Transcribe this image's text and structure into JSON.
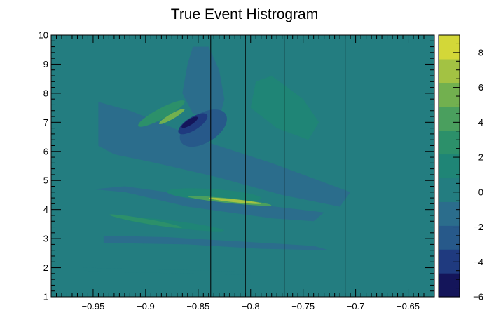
{
  "chart_data": {
    "type": "heatmap",
    "title": "True Event Histrogram",
    "xlabel": "",
    "ylabel": "",
    "xlim": [
      -0.99,
      -0.625
    ],
    "ylim": [
      1,
      10
    ],
    "x_ticks": [
      -0.95,
      -0.9,
      -0.85,
      -0.8,
      -0.75,
      -0.7,
      -0.65
    ],
    "x_tick_labels": [
      "−0.95",
      "−0.9",
      "−0.85",
      "−0.8",
      "−0.75",
      "−0.7",
      "−0.65"
    ],
    "y_ticks": [
      1,
      2,
      3,
      4,
      5,
      6,
      7,
      8,
      9,
      10
    ],
    "y_tick_labels": [
      "1",
      "2",
      "3",
      "4",
      "5",
      "6",
      "7",
      "8",
      "9",
      "10"
    ],
    "colorbar": {
      "zlim": [
        -6,
        9
      ],
      "ticks": [
        -6,
        -4,
        -2,
        0,
        2,
        4,
        6,
        8
      ],
      "tick_labels": [
        "−6",
        "−4",
        "−2",
        "0",
        "2",
        "4",
        "6",
        "8"
      ],
      "palette": [
        "#14155a",
        "#1f3a7f",
        "#27598a",
        "#2b6d8c",
        "#237d80",
        "#1f8576",
        "#2c906a",
        "#4a9f5e",
        "#72b04f",
        "#a3c243",
        "#d3d738"
      ]
    },
    "background_value": 0,
    "vertical_lines_x": [
      -0.838,
      -0.805,
      -0.768,
      -0.71
    ],
    "features": [
      {
        "shape": "polygon",
        "value": -1.3,
        "points": [
          [
            -0.945,
            7.7
          ],
          [
            -0.915,
            7.4
          ],
          [
            -0.88,
            6.9
          ],
          [
            -0.84,
            6.3
          ],
          [
            -0.78,
            5.6
          ],
          [
            -0.72,
            4.8
          ],
          [
            -0.705,
            4.6
          ],
          [
            -0.715,
            4.1
          ],
          [
            -0.77,
            4.5
          ],
          [
            -0.83,
            5.1
          ],
          [
            -0.89,
            5.6
          ],
          [
            -0.93,
            5.9
          ],
          [
            -0.945,
            6.2
          ]
        ]
      },
      {
        "shape": "polygon",
        "value": -1.3,
        "points": [
          [
            -0.86,
            9.0
          ],
          [
            -0.855,
            9.6
          ],
          [
            -0.84,
            9.6
          ],
          [
            -0.83,
            8.8
          ],
          [
            -0.825,
            7.8
          ],
          [
            -0.83,
            7.1
          ],
          [
            -0.855,
            7.3
          ],
          [
            -0.865,
            8.0
          ]
        ]
      },
      {
        "shape": "polygon",
        "value": 1.2,
        "points": [
          [
            -0.8,
            7.5
          ],
          [
            -0.795,
            8.4
          ],
          [
            -0.78,
            8.6
          ],
          [
            -0.75,
            7.8
          ],
          [
            -0.735,
            7.0
          ],
          [
            -0.745,
            6.4
          ],
          [
            -0.775,
            6.8
          ]
        ]
      },
      {
        "shape": "polygon",
        "value": -0.8,
        "points": [
          [
            -0.95,
            4.7
          ],
          [
            -0.92,
            4.6
          ],
          [
            -0.86,
            4.1
          ],
          [
            -0.78,
            3.7
          ],
          [
            -0.74,
            3.6
          ],
          [
            -0.73,
            3.9
          ],
          [
            -0.8,
            4.2
          ],
          [
            -0.88,
            4.6
          ],
          [
            -0.92,
            4.8
          ]
        ]
      },
      {
        "shape": "polygon",
        "value": -0.7,
        "points": [
          [
            -0.94,
            3.1
          ],
          [
            -0.88,
            3.05
          ],
          [
            -0.81,
            2.9
          ],
          [
            -0.74,
            2.75
          ],
          [
            -0.725,
            2.6
          ],
          [
            -0.79,
            2.65
          ],
          [
            -0.86,
            2.8
          ],
          [
            -0.94,
            2.85
          ]
        ]
      },
      {
        "shape": "polygon",
        "value": -0.5,
        "points": [
          [
            -0.96,
            2.0
          ],
          [
            -0.9,
            1.95
          ],
          [
            -0.84,
            1.9
          ],
          [
            -0.8,
            1.85
          ],
          [
            -0.8,
            1.75
          ],
          [
            -0.86,
            1.8
          ],
          [
            -0.93,
            1.85
          ],
          [
            -0.96,
            1.9
          ]
        ]
      },
      {
        "shape": "ellipse",
        "value": 1.8,
        "cx": -0.875,
        "cy": 3.5,
        "rx": 0.05,
        "ry": 0.12,
        "rot": 7
      },
      {
        "shape": "ellipse",
        "value": 3.2,
        "cx": -0.9,
        "cy": 3.6,
        "rx": 0.035,
        "ry": 0.08,
        "rot": 10
      },
      {
        "shape": "ellipse",
        "value": 2.0,
        "cx": -0.835,
        "cy": 4.5,
        "rx": 0.045,
        "ry": 0.2,
        "rot": 4
      },
      {
        "shape": "ellipse",
        "value": 4.5,
        "cx": -0.82,
        "cy": 4.3,
        "rx": 0.04,
        "ry": 0.08,
        "rot": 6
      },
      {
        "shape": "ellipse",
        "value": 7.5,
        "cx": -0.815,
        "cy": 4.3,
        "rx": 0.025,
        "ry": 0.05,
        "rot": 6
      },
      {
        "shape": "ellipse",
        "value": 2.2,
        "cx": -0.885,
        "cy": 7.3,
        "rx": 0.025,
        "ry": 0.18,
        "rot": -28
      },
      {
        "shape": "ellipse",
        "value": 5.5,
        "cx": -0.875,
        "cy": 7.2,
        "rx": 0.014,
        "ry": 0.09,
        "rot": -30
      },
      {
        "shape": "ellipse",
        "value": -2.5,
        "cx": -0.845,
        "cy": 6.8,
        "rx": 0.025,
        "ry": 0.5,
        "rot": -32
      },
      {
        "shape": "ellipse",
        "value": -4.5,
        "cx": -0.855,
        "cy": 6.95,
        "rx": 0.016,
        "ry": 0.22,
        "rot": -32
      },
      {
        "shape": "ellipse",
        "value": -5.8,
        "cx": -0.858,
        "cy": 7.0,
        "rx": 0.009,
        "ry": 0.1,
        "rot": -32
      }
    ]
  }
}
